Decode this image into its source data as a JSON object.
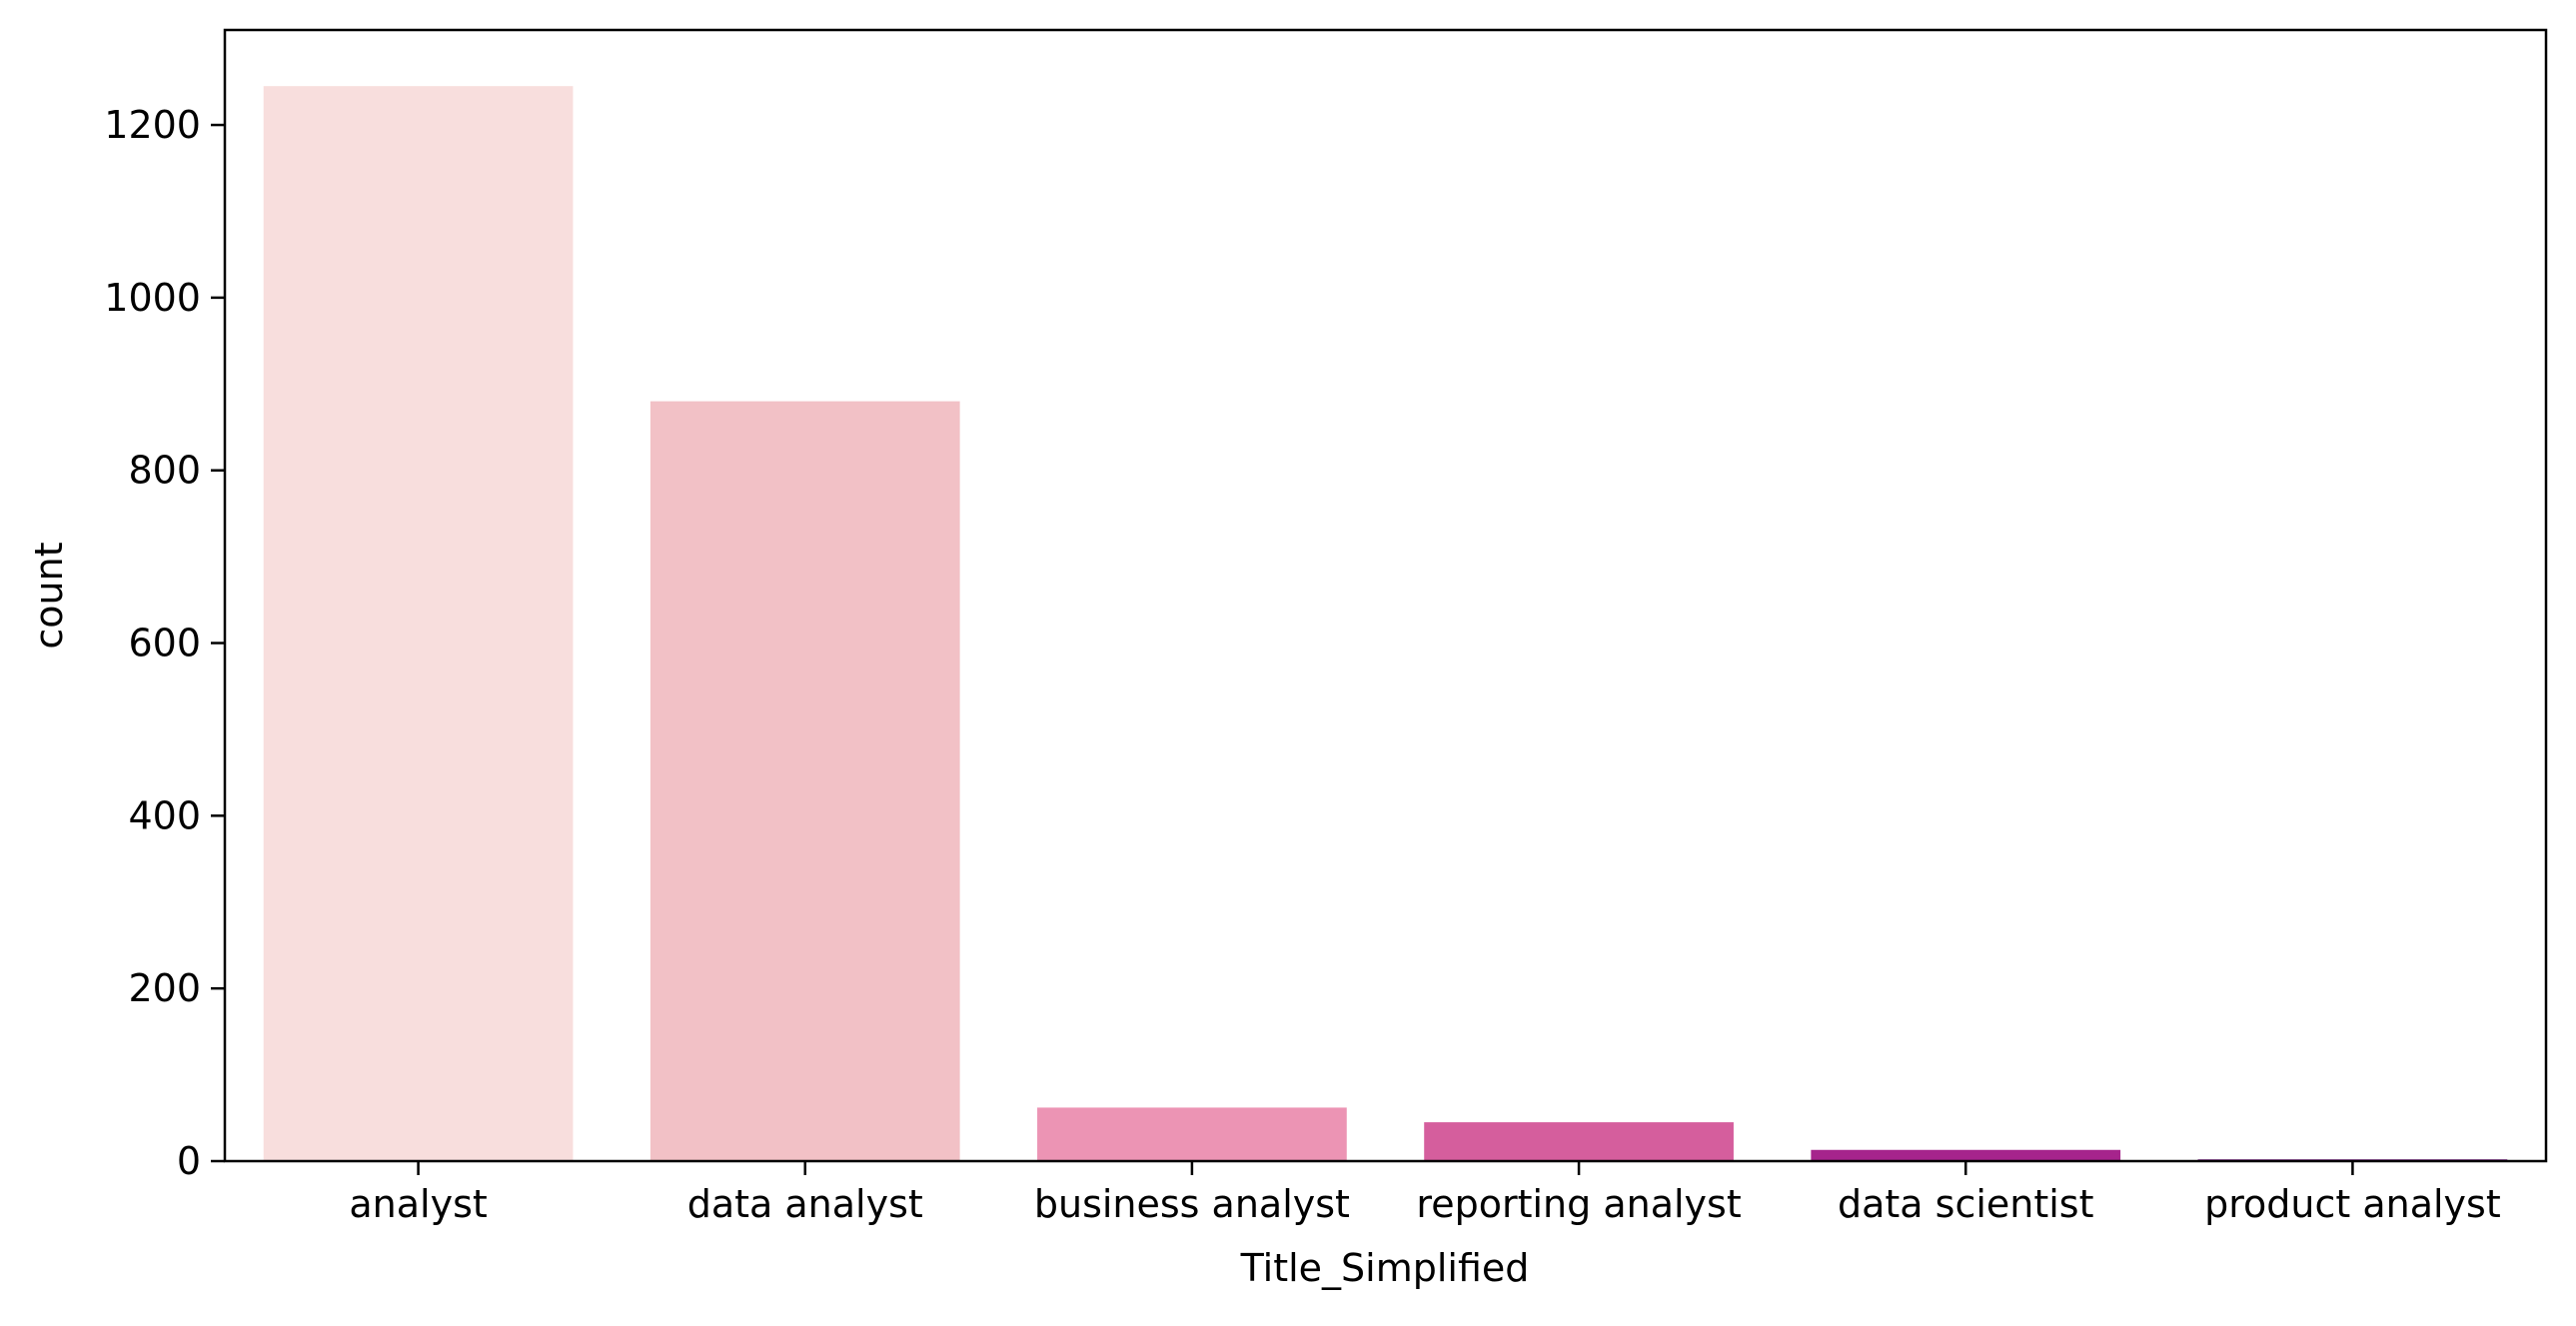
{
  "chart_data": {
    "type": "bar",
    "title": "",
    "xlabel": "Title_Simplified",
    "ylabel": "count",
    "categories": [
      "analyst",
      "data analyst",
      "business analyst",
      "reporting analyst",
      "data scientist",
      "product analyst"
    ],
    "values": [
      1245,
      880,
      62,
      45,
      13,
      2
    ],
    "colors": [
      "#f8dedd",
      "#f2c1c6",
      "#ec94b4",
      "#d55e9d",
      "#a6248c",
      "#6d0a77"
    ],
    "ylim": [
      0,
      1310
    ],
    "yticks": [
      0,
      200,
      400,
      600,
      800,
      1000,
      1200
    ],
    "grid": false
  }
}
